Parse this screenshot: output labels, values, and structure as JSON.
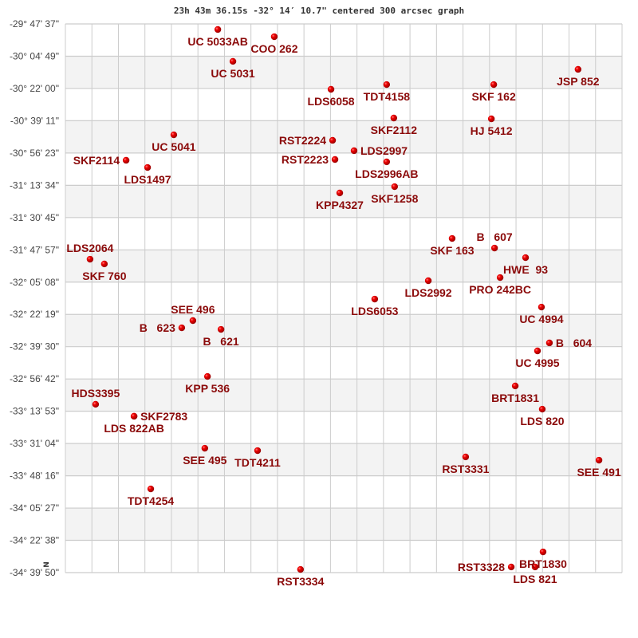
{
  "chart_data": {
    "type": "scatter",
    "title": "23h 43m 36.15s -32° 14′ 10.7\" centered 300 arcsec graph",
    "north_marker": "N",
    "xlim": [
      0,
      21
    ],
    "ylim": [
      -34.6639,
      -29.7936
    ],
    "grid": true,
    "banded_rows": true,
    "colors": {
      "point": "#dd0000",
      "label": "#8b0a0a",
      "grid": "#cccccc",
      "band": "#f3f3f3"
    },
    "y_tick_labels": [
      "-29° 47' 37\"",
      "-30° 04' 49\"",
      "-30° 22' 00\"",
      "-30° 39' 11\"",
      "-30° 56' 23\"",
      "-31° 13' 34\"",
      "-31° 30' 45\"",
      "-31° 47' 57\"",
      "-32° 05' 08\"",
      "-32° 22' 19\"",
      "-32° 39' 30\"",
      "-32° 56' 42\"",
      "-33° 13' 53\"",
      "-33° 31' 04\"",
      "-33° 48' 16\"",
      "-34° 05' 27\"",
      "-34° 22' 38\"",
      "-34° 39' 50\""
    ],
    "points": [
      {
        "label": "UC 5033AB",
        "x": 5.75,
        "dec": -29.843
      },
      {
        "label": "COO 262",
        "x": 7.88,
        "dec": -29.907
      },
      {
        "label": "UC 5031",
        "x": 6.32,
        "dec": -30.126
      },
      {
        "label": "LDS6058",
        "x": 10.02,
        "dec": -30.374
      },
      {
        "label": "TDT4158",
        "x": 12.12,
        "dec": -30.332
      },
      {
        "label": "SKF 162",
        "x": 16.16,
        "dec": -30.332
      },
      {
        "label": "JSP 852",
        "x": 19.34,
        "dec": -30.197
      },
      {
        "label": "SKF2112",
        "x": 12.39,
        "dec": -30.629
      },
      {
        "label": "HJ 5412",
        "x": 16.07,
        "dec": -30.636
      },
      {
        "label": "UC 5041",
        "x": 4.09,
        "dec": -30.778
      },
      {
        "label": "RST2224",
        "x": 10.08,
        "dec": -30.827
      },
      {
        "label": "LDS2997",
        "x": 10.89,
        "dec": -30.919
      },
      {
        "label": "RST2223",
        "x": 10.17,
        "dec": -30.997
      },
      {
        "label": "LDS2996AB",
        "x": 12.12,
        "dec": -31.018
      },
      {
        "label": "SKF2114",
        "x": 2.29,
        "dec": -31.004
      },
      {
        "label": "LDS1497",
        "x": 3.1,
        "dec": -31.068
      },
      {
        "label": "SKF1258",
        "x": 12.42,
        "dec": -31.238
      },
      {
        "label": "KPP4327",
        "x": 10.35,
        "dec": -31.294
      },
      {
        "label": "SKF 163",
        "x": 14.59,
        "dec": -31.698
      },
      {
        "label": "B   607",
        "x": 16.19,
        "dec": -31.783
      },
      {
        "label": "HWE  93",
        "x": 17.36,
        "dec": -31.868
      },
      {
        "label": "PRO 242BC",
        "x": 16.4,
        "dec": -32.045
      },
      {
        "label": "LDS2992",
        "x": 13.69,
        "dec": -32.073
      },
      {
        "label": "LDS6053",
        "x": 11.67,
        "dec": -32.236
      },
      {
        "label": "LDS2064",
        "x": 0.93,
        "dec": -31.882
      },
      {
        "label": "SKF 760",
        "x": 1.47,
        "dec": -31.924
      },
      {
        "label": "UC 4994",
        "x": 17.96,
        "dec": -32.307
      },
      {
        "label": "SEE 496",
        "x": 4.81,
        "dec": -32.427
      },
      {
        "label": "B   623",
        "x": 4.39,
        "dec": -32.491
      },
      {
        "label": "B   621",
        "x": 5.87,
        "dec": -32.505
      },
      {
        "label": "B   604",
        "x": 18.26,
        "dec": -32.625
      },
      {
        "label": "UC 4995",
        "x": 17.81,
        "dec": -32.696
      },
      {
        "label": "KPP 536",
        "x": 5.36,
        "dec": -32.923
      },
      {
        "label": "BRT1831",
        "x": 16.97,
        "dec": -33.007
      },
      {
        "label": "HDS3395",
        "x": 1.14,
        "dec": -33.17
      },
      {
        "label": "LDS 822AB",
        "x": 2.59,
        "dec": -33.276
      },
      {
        "label": "SKF2783",
        "x": 2.59,
        "dec": -33.276
      },
      {
        "label": "LDS 820",
        "x": 17.99,
        "dec": -33.213
      },
      {
        "label": "SEE 495",
        "x": 5.26,
        "dec": -33.56
      },
      {
        "label": "TDT4211",
        "x": 7.25,
        "dec": -33.581
      },
      {
        "label": "RST3331",
        "x": 15.1,
        "dec": -33.637
      },
      {
        "label": "SEE 491",
        "x": 20.13,
        "dec": -33.666
      },
      {
        "label": "TDT4254",
        "x": 3.22,
        "dec": -33.921
      },
      {
        "label": "BRT1830",
        "x": 18.02,
        "dec": -34.48
      },
      {
        "label": "RST3334",
        "x": 8.87,
        "dec": -34.636
      },
      {
        "label": "RST3328",
        "x": 16.82,
        "dec": -34.614
      },
      {
        "label": "LDS 821",
        "x": 17.72,
        "dec": -34.614
      }
    ]
  }
}
